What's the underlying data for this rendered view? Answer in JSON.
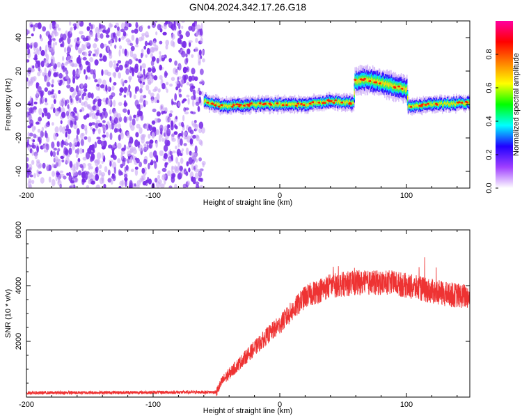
{
  "page_title": "GN04.2024.342.17.26.G18",
  "chart_data": [
    {
      "type": "heatmap",
      "title": "GN04.2024.342.17.26.G18",
      "xlabel": "Height of straight line (km)",
      "ylabel": "Frequency (Hz)",
      "xlim": [
        -200,
        150
      ],
      "ylim": [
        -50,
        50
      ],
      "xticks": [
        "-200",
        "-100",
        "0",
        "100"
      ],
      "yticks": [
        "-40",
        "-20",
        "0",
        "20",
        "40"
      ],
      "noise_region_x": [
        -200,
        -60
      ],
      "ridge": [
        {
          "x": -60,
          "freq": 2
        },
        {
          "x": -45,
          "freq": -1
        },
        {
          "x": -20,
          "freq": 0
        },
        {
          "x": 0,
          "freq": 0
        },
        {
          "x": 20,
          "freq": 0
        },
        {
          "x": 40,
          "freq": 2
        },
        {
          "x": 58,
          "freq": 1
        },
        {
          "x": 59,
          "freq": 14
        },
        {
          "x": 70,
          "freq": 15
        },
        {
          "x": 85,
          "freq": 12
        },
        {
          "x": 100,
          "freq": 9
        },
        {
          "x": 101,
          "freq": -1
        },
        {
          "x": 120,
          "freq": 0
        },
        {
          "x": 150,
          "freq": 1
        }
      ],
      "colorbar": {
        "label": "Normalized spectral amplitude",
        "range": [
          0,
          1
        ],
        "ticks": [
          "0.0",
          "0.2",
          "0.4",
          "0.6",
          "0.8"
        ],
        "colormap": [
          "#ffffff",
          "#a040ff",
          "#2000ff",
          "#00ffff",
          "#00ff00",
          "#ffff00",
          "#ff8000",
          "#ff0000",
          "#ff00a0"
        ]
      },
      "colors": {
        "noise": "#7a2ee8",
        "noise_light": "#c9a6f5"
      }
    },
    {
      "type": "line",
      "xlabel": "Height of straight line (km)",
      "ylabel": "SNR (10 * v/v)",
      "xlim": [
        -200,
        150
      ],
      "ylim": [
        0,
        6000
      ],
      "xticks": [
        "-200",
        "-100",
        "0",
        "100"
      ],
      "yticks": [
        "2000",
        "4000",
        "6000"
      ],
      "color": "#ee3333",
      "envelope": [
        {
          "x": -200,
          "snr": 150
        },
        {
          "x": -50,
          "snr": 180
        },
        {
          "x": -45,
          "snr": 600
        },
        {
          "x": -30,
          "snr": 1300
        },
        {
          "x": -10,
          "snr": 2200
        },
        {
          "x": 0,
          "snr": 2600
        },
        {
          "x": 20,
          "snr": 3600
        },
        {
          "x": 40,
          "snr": 4000
        },
        {
          "x": 60,
          "snr": 4100
        },
        {
          "x": 90,
          "snr": 4100
        },
        {
          "x": 110,
          "snr": 3900
        },
        {
          "x": 130,
          "snr": 3700
        },
        {
          "x": 150,
          "snr": 3600
        }
      ],
      "spread": 450
    }
  ]
}
